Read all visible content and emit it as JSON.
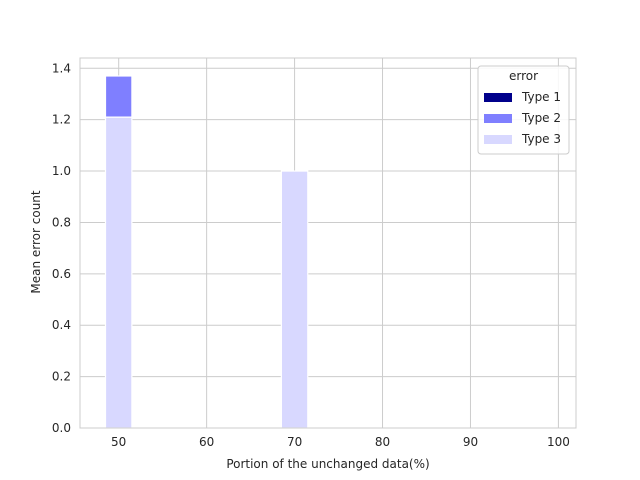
{
  "chart_data": {
    "type": "bar",
    "stacked": true,
    "xlabel": "Portion of the unchanged data(%)",
    "ylabel": "Mean error count",
    "xlim": [
      45.6,
      102.0
    ],
    "ylim": [
      0,
      1.44
    ],
    "xticks": [
      50,
      60,
      70,
      80,
      90,
      100
    ],
    "yticks": [
      0.0,
      0.2,
      0.4,
      0.6,
      0.8,
      1.0,
      1.2,
      1.4
    ],
    "xtick_labels": [
      "50",
      "60",
      "70",
      "80",
      "90",
      "100"
    ],
    "ytick_labels": [
      "0.0",
      "0.2",
      "0.4",
      "0.6",
      "0.8",
      "1.0",
      "1.2",
      "1.4"
    ],
    "bar_width": 3.0,
    "grid": true,
    "legend": {
      "title": "error",
      "placement": "top-right"
    },
    "x": [
      50,
      70
    ],
    "series": [
      {
        "name": "Type 1",
        "color": "#00008b",
        "values": [
          0.0,
          0.0
        ]
      },
      {
        "name": "Type 2",
        "color": "#7f7fff",
        "values": [
          0.16,
          0.0
        ]
      },
      {
        "name": "Type 3",
        "color": "#d8d8ff",
        "values": [
          1.21,
          1.0
        ]
      }
    ]
  }
}
